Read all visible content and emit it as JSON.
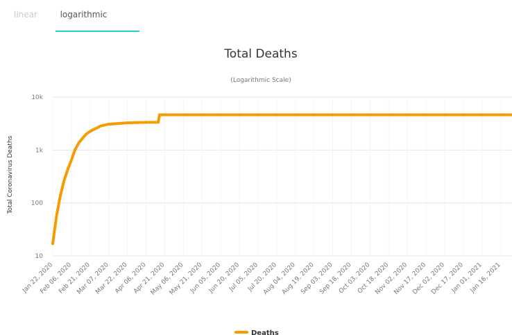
{
  "tabs": [
    {
      "label": "linear",
      "active": false
    },
    {
      "label": "logarithmic",
      "active": true
    }
  ],
  "colors": {
    "tab_active_underline": "#24c7d9",
    "series": "#f59c00",
    "grid": "#e6e6e6",
    "text": "#333333",
    "muted": "#777777"
  },
  "chart_data": {
    "type": "line",
    "title": "Total Deaths",
    "subtitle": "(Logarithmic Scale)",
    "ylabel": "Total Coronavirus Deaths",
    "xlabel": "",
    "yscale": "log",
    "ylim": [
      10,
      10000
    ],
    "yticks": [
      {
        "value": 10,
        "label": "10"
      },
      {
        "value": 100,
        "label": "100"
      },
      {
        "value": 1000,
        "label": "1k"
      },
      {
        "value": 10000,
        "label": "10k"
      }
    ],
    "xticks": [
      "Jan 22, 2020",
      "Feb 06, 2020",
      "Feb 21, 2020",
      "Mar 07, 2020",
      "Mar 22, 2020",
      "Apr 06, 2020",
      "Apr 21, 2020",
      "May 06, 2020",
      "May 21, 2020",
      "Jun 05, 2020",
      "Jun 20, 2020",
      "Jul 05, 2020",
      "Jul 20, 2020",
      "Aug 04, 2020",
      "Aug 19, 2020",
      "Sep 03, 2020",
      "Sep 18, 2020",
      "Oct 03, 2020",
      "Oct 18, 2020",
      "Nov 02, 2020",
      "Nov 17, 2020",
      "Dec 02, 2020",
      "Dec 17, 2020",
      "Jan 01, 2021",
      "Jan 16, 2021"
    ],
    "xlim": [
      "2020-01-22",
      "2021-01-26"
    ],
    "grid": true,
    "legend_position": "bottom",
    "series": [
      {
        "name": "Deaths",
        "color": "#f59c00",
        "x": [
          "2020-01-22",
          "2020-01-25",
          "2020-01-28",
          "2020-01-31",
          "2020-02-03",
          "2020-02-06",
          "2020-02-09",
          "2020-02-12",
          "2020-02-15",
          "2020-02-18",
          "2020-02-21",
          "2020-02-24",
          "2020-03-01",
          "2020-03-07",
          "2020-03-22",
          "2020-04-06",
          "2020-04-16",
          "2020-04-17",
          "2020-05-06",
          "2020-06-05",
          "2020-08-04",
          "2020-10-03",
          "2020-12-02",
          "2021-01-26"
        ],
        "y": [
          17,
          56,
          132,
          259,
          425,
          638,
          1016,
          1370,
          1669,
          2004,
          2247,
          2444,
          2870,
          3070,
          3270,
          3340,
          3342,
          4632,
          4633,
          4634,
          4634,
          4634,
          4634,
          4636
        ]
      }
    ]
  }
}
